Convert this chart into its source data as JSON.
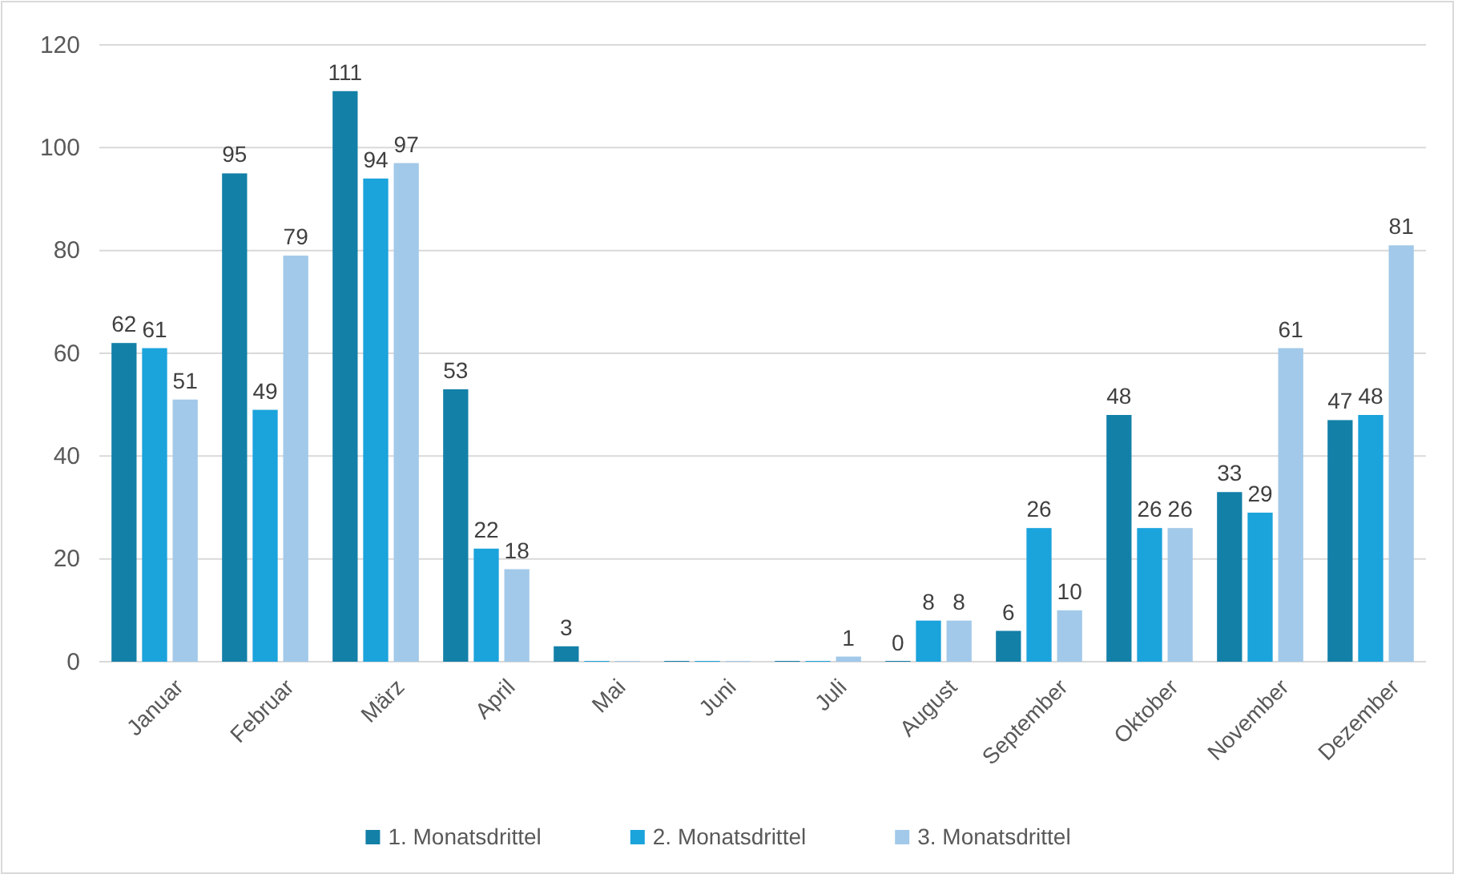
{
  "chart_data": {
    "type": "bar",
    "categories": [
      "Januar",
      "Februar",
      "März",
      "April",
      "Mai",
      "Juni",
      "Juli",
      "August",
      "September",
      "Oktober",
      "November",
      "Dezember"
    ],
    "series": [
      {
        "name": "1. Monatsdrittel",
        "color": "#1380a8",
        "values": [
          62,
          95,
          111,
          53,
          3,
          0,
          0,
          0,
          6,
          48,
          33,
          47
        ],
        "value_labels": [
          "62",
          "95",
          "111",
          "53",
          "3",
          null,
          null,
          "0",
          "6",
          "48",
          "33",
          "47"
        ]
      },
      {
        "name": "2. Monatsdrittel",
        "color": "#1ba3dc",
        "values": [
          61,
          49,
          94,
          22,
          0,
          0,
          0,
          8,
          26,
          26,
          29,
          48
        ],
        "value_labels": [
          "61",
          "49",
          "94",
          "22",
          null,
          null,
          null,
          "8",
          "26",
          "26",
          "29",
          "48"
        ]
      },
      {
        "name": "3. Monatsdrittel",
        "color": "#a2c9e9",
        "values": [
          51,
          79,
          97,
          18,
          0,
          0,
          1,
          8,
          10,
          26,
          61,
          81
        ],
        "value_labels": [
          "51",
          "79",
          "97",
          "18",
          null,
          null,
          "1",
          "8",
          "10",
          "26",
          "61",
          "81"
        ]
      }
    ],
    "ylim": [
      0,
      120
    ],
    "yticks": [
      0,
      20,
      40,
      60,
      80,
      100,
      120
    ],
    "grid": "y",
    "legend": "bottom"
  }
}
